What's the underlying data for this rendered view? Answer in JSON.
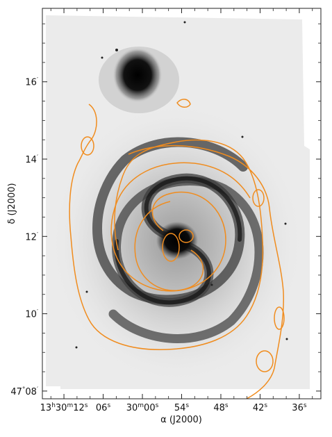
{
  "chart_data": {
    "type": "contour-overlay",
    "xlabel": {
      "symbol": "α",
      "rest": " (J2000)"
    },
    "ylabel": {
      "symbol": "δ",
      "rest": " (J2000)"
    },
    "x_ticks": [
      {
        "value_s": 72,
        "parts": [
          {
            "t": "13"
          },
          {
            "t": "h",
            "sup": true
          },
          {
            "t": "30"
          },
          {
            "t": "m",
            "sup": true
          },
          {
            "t": "12"
          },
          {
            "t": "s",
            "sup": true
          }
        ]
      },
      {
        "value_s": 66,
        "parts": [
          {
            "t": "06"
          },
          {
            "t": "s",
            "sup": true
          }
        ]
      },
      {
        "value_s": 60,
        "parts": [
          {
            "t": "30"
          },
          {
            "t": "m",
            "sup": true
          },
          {
            "t": "00"
          },
          {
            "t": "s",
            "sup": true
          }
        ]
      },
      {
        "value_s": 54,
        "parts": [
          {
            "t": "54"
          },
          {
            "t": "s",
            "sup": true
          }
        ]
      },
      {
        "value_s": 48,
        "parts": [
          {
            "t": "48"
          },
          {
            "t": "s",
            "sup": true
          }
        ]
      },
      {
        "value_s": 42,
        "parts": [
          {
            "t": "42"
          },
          {
            "t": "s",
            "sup": true
          }
        ]
      },
      {
        "value_s": 36,
        "parts": [
          {
            "t": "36"
          },
          {
            "t": "s",
            "sup": true
          }
        ]
      }
    ],
    "y_ticks": [
      {
        "value_arcmin": 8,
        "parts": [
          {
            "t": "47"
          },
          {
            "t": "°",
            "sup": true
          },
          {
            "t": "08"
          },
          {
            "t": "′",
            "sup": true
          }
        ]
      },
      {
        "value_arcmin": 10,
        "parts": [
          {
            "t": "10"
          },
          {
            "t": "′",
            "sup": true
          }
        ]
      },
      {
        "value_arcmin": 12,
        "parts": [
          {
            "t": "12"
          },
          {
            "t": "′",
            "sup": true
          }
        ]
      },
      {
        "value_arcmin": 14,
        "parts": [
          {
            "t": "14"
          },
          {
            "t": "′",
            "sup": true
          }
        ]
      },
      {
        "value_arcmin": 16,
        "parts": [
          {
            "t": "16"
          },
          {
            "t": "′",
            "sup": true
          }
        ]
      }
    ],
    "xlim_s": [
      75.3,
      32.7
    ],
    "ylim_arcmin": [
      7.8,
      17.9
    ],
    "colors": {
      "contour": "#f08c1e",
      "background": "#e8e8e8",
      "galaxy": "#222222",
      "axes": "#222222"
    }
  }
}
